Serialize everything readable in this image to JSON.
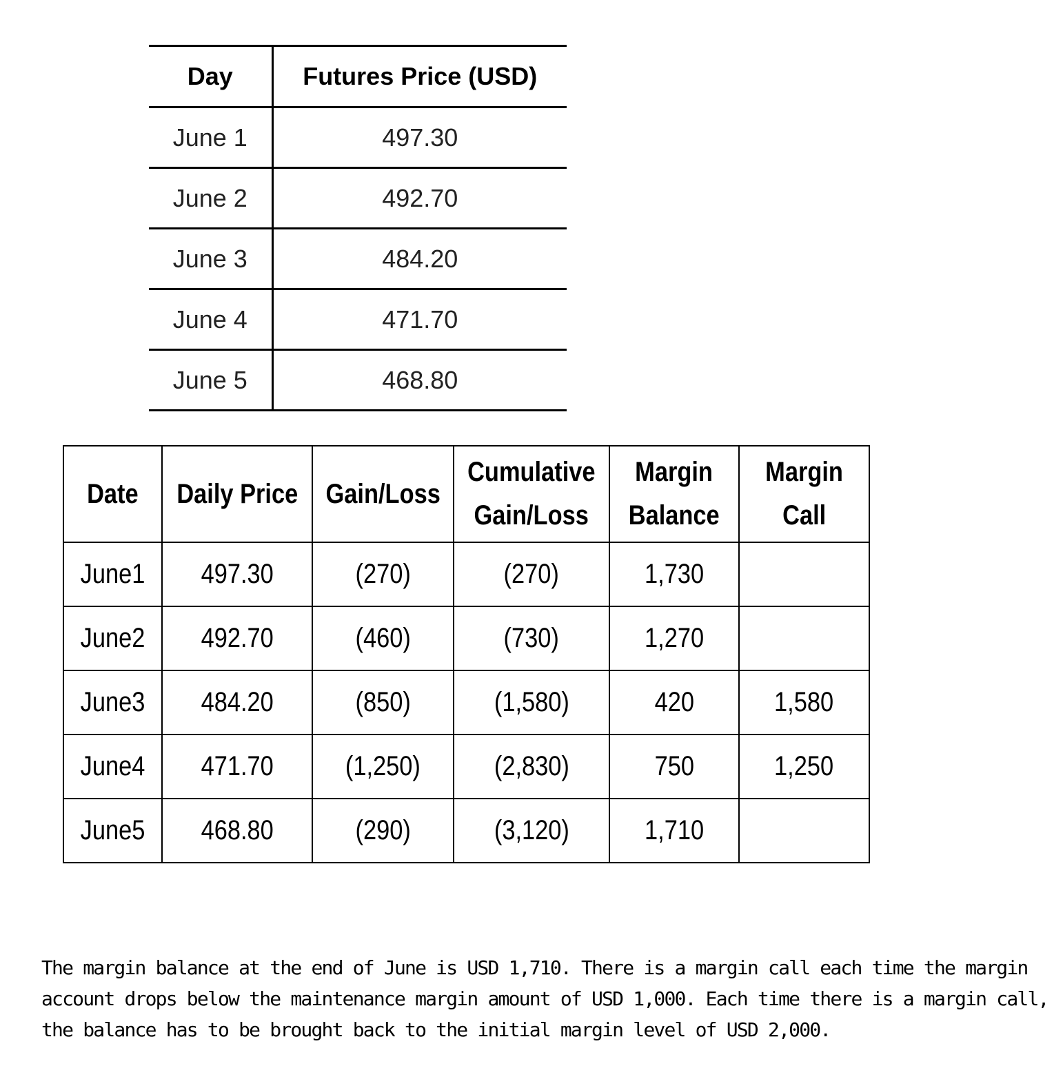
{
  "futures_table": {
    "headers": [
      "Day",
      "Futures Price (USD)"
    ],
    "rows": [
      [
        "June 1",
        "497.30"
      ],
      [
        "June 2",
        "492.70"
      ],
      [
        "June 3",
        "484.20"
      ],
      [
        "June 4",
        "471.70"
      ],
      [
        "June 5",
        "468.80"
      ]
    ]
  },
  "margin_table": {
    "headers": [
      [
        "Date"
      ],
      [
        "Daily Price"
      ],
      [
        "Gain/Loss"
      ],
      [
        "Cumulative",
        "Gain/Loss"
      ],
      [
        "Margin",
        "Balance"
      ],
      [
        "Margin",
        "Call"
      ]
    ],
    "rows": [
      [
        "June1",
        "497.30",
        "(270)",
        "(270)",
        "1,730",
        ""
      ],
      [
        "June2",
        "492.70",
        "(460)",
        "(730)",
        "1,270",
        ""
      ],
      [
        "June3",
        "484.20",
        "(850)",
        "(1,580)",
        "420",
        "1,580"
      ],
      [
        "June4",
        "471.70",
        "(1,250)",
        "(2,830)",
        "750",
        "1,250"
      ],
      [
        "June5",
        "468.80",
        "(290)",
        "(3,120)",
        "1,710",
        ""
      ]
    ]
  },
  "explanation": "The margin balance at the end of June is USD 1,710. There is a margin call each time the margin account drops below the maintenance margin amount of USD 1,000. Each time there is a margin call, the balance has to be brought back to the initial margin level of USD 2,000."
}
